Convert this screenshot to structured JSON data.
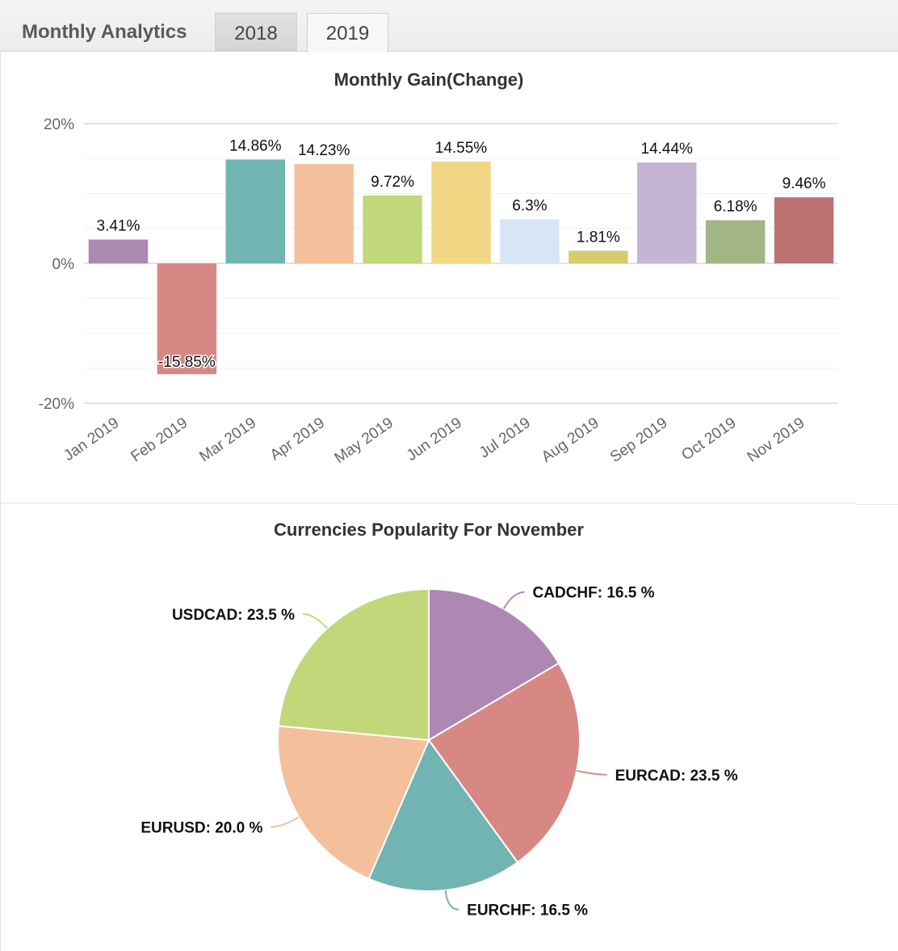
{
  "header": {
    "title": "Monthly Analytics",
    "tabs": [
      {
        "label": "2018",
        "active": false
      },
      {
        "label": "2019",
        "active": true
      }
    ]
  },
  "chart_data": [
    {
      "type": "bar",
      "title": "Monthly Gain(Change)",
      "categories": [
        "Jan 2019",
        "Feb 2019",
        "Mar 2019",
        "Apr 2019",
        "May 2019",
        "Jun 2019",
        "Jul 2019",
        "Aug 2019",
        "Sep 2019",
        "Oct 2019",
        "Nov 2019"
      ],
      "values": [
        3.41,
        -15.85,
        14.86,
        14.23,
        9.72,
        14.55,
        6.3,
        1.81,
        14.44,
        6.18,
        9.46
      ],
      "value_labels": [
        "3.41%",
        "-15.85%",
        "14.86%",
        "14.23%",
        "9.72%",
        "14.55%",
        "6.3%",
        "1.81%",
        "14.44%",
        "6.18%",
        "9.46%"
      ],
      "colors": [
        "#ad88b3",
        "#d88884",
        "#72b4b2",
        "#f4c09c",
        "#c1d779",
        "#f2d683",
        "#d7e6f5",
        "#d4cd6e",
        "#c4b5d4",
        "#a2b585",
        "#bc7272"
      ],
      "ylim": [
        -20,
        20
      ],
      "yticks": [
        20,
        0,
        -20
      ],
      "ytick_labels": [
        "20%",
        "0%",
        "-20%"
      ],
      "grid": true,
      "xlabel": "",
      "ylabel": ""
    },
    {
      "type": "pie",
      "title": "Currencies Popularity For November",
      "slices": [
        {
          "label": "CADCHF: 16.5 %",
          "value": 16.5,
          "color": "#ad88b3"
        },
        {
          "label": "EURCAD: 23.5 %",
          "value": 23.5,
          "color": "#d88884"
        },
        {
          "label": "EURCHF: 16.5 %",
          "value": 16.5,
          "color": "#72b4b2"
        },
        {
          "label": "EURUSD: 20.0 %",
          "value": 20.0,
          "color": "#f4c09c"
        },
        {
          "label": "USDCAD: 23.5 %",
          "value": 23.5,
          "color": "#c1d779"
        }
      ]
    }
  ]
}
